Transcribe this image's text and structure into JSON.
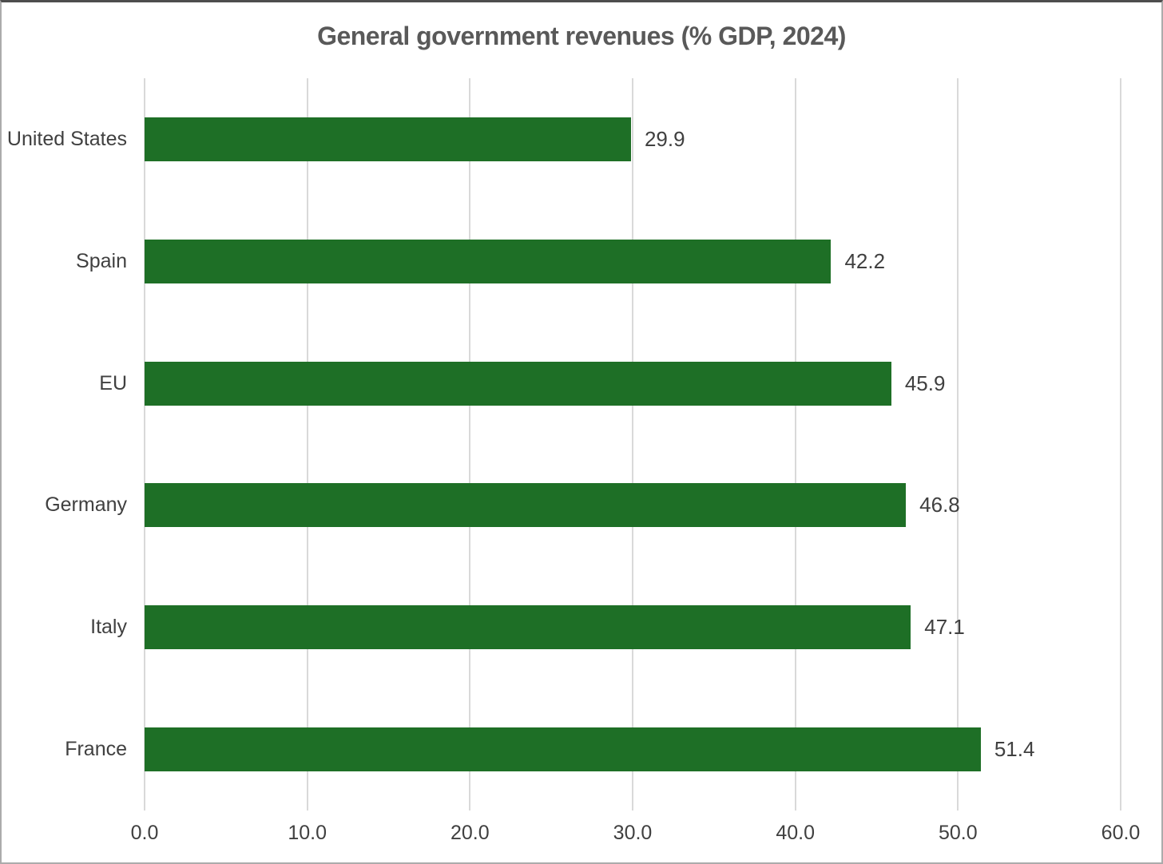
{
  "title": "General government revenues (% GDP, 2024)",
  "colors": {
    "bar": "#1e6f26",
    "gridline": "#d9d9d9",
    "title_text": "#595959",
    "label_text": "#404040",
    "background": "#ffffff"
  },
  "chart_data": {
    "type": "bar",
    "orientation": "horizontal",
    "title": "General government revenues (% GDP, 2024)",
    "categories": [
      "United States",
      "Spain",
      "EU",
      "Germany",
      "Italy",
      "France"
    ],
    "values": [
      29.9,
      42.2,
      45.9,
      46.8,
      47.1,
      51.4
    ],
    "value_labels": [
      "29.9",
      "42.2",
      "45.9",
      "46.8",
      "47.1",
      "51.4"
    ],
    "xlabel": "",
    "ylabel": "",
    "xlim": [
      0,
      60
    ],
    "x_ticks": [
      "0.0",
      "10.0",
      "20.0",
      "30.0",
      "40.0",
      "50.0",
      "60.0"
    ],
    "grid": true,
    "legend": false,
    "bar_color": "#1e6f26"
  }
}
